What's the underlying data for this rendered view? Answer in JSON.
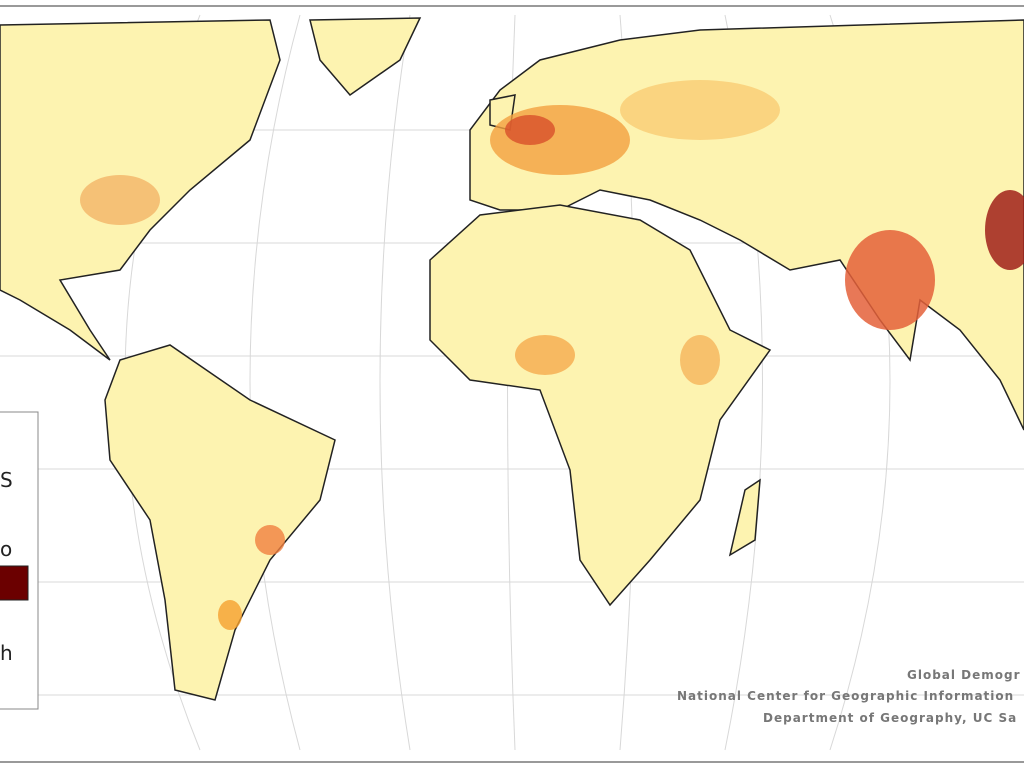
{
  "legend": {
    "title": "S",
    "items": [
      "o",
      "h"
    ]
  },
  "credits": [
    "Global Demogr",
    "National Center for Geographic Information",
    "Department of Geography, UC Sa"
  ]
}
